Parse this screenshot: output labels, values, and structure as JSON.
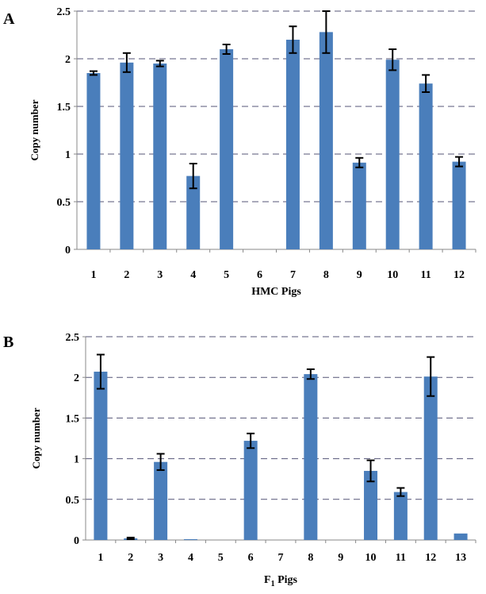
{
  "colors": {
    "bar": "#4a7ebb",
    "grid": "#555577",
    "axis": "#888888",
    "error": "#000000"
  },
  "chart_data": [
    {
      "panel": "A",
      "type": "bar",
      "xlabel": "HMC Pigs",
      "ylabel": "Copy number",
      "ylim": [
        0,
        2.5
      ],
      "yticks": [
        "0",
        "0.5",
        "1",
        "1.5",
        "2",
        "2.5"
      ],
      "grid": true,
      "categories": [
        "1",
        "2",
        "3",
        "4",
        "5",
        "6",
        "7",
        "8",
        "9",
        "10",
        "11",
        "12"
      ],
      "values": [
        1.85,
        1.96,
        1.95,
        0.77,
        2.1,
        0,
        2.2,
        2.28,
        0.91,
        1.99,
        1.74,
        0.92
      ],
      "errors": [
        0.02,
        0.1,
        0.03,
        0.13,
        0.05,
        0,
        0.14,
        0.22,
        0.05,
        0.11,
        0.09,
        0.05
      ]
    },
    {
      "panel": "B",
      "type": "bar",
      "xlabel": "F1 Pigs",
      "ylabel": "Copy number",
      "ylim": [
        0,
        2.5
      ],
      "yticks": [
        "0",
        "0.5",
        "1",
        "1.5",
        "2",
        "2.5"
      ],
      "grid": true,
      "categories": [
        "1",
        "2",
        "3",
        "4",
        "5",
        "6",
        "7",
        "8",
        "9",
        "10",
        "11",
        "12",
        "13"
      ],
      "values": [
        2.07,
        0.02,
        0.96,
        0.01,
        0,
        1.22,
        0,
        2.04,
        0,
        0.85,
        0.59,
        2.01,
        0.08
      ],
      "errors": [
        0.21,
        0.01,
        0.1,
        0,
        0,
        0.09,
        0,
        0.06,
        0,
        0.13,
        0.05,
        0.24,
        0
      ]
    }
  ]
}
